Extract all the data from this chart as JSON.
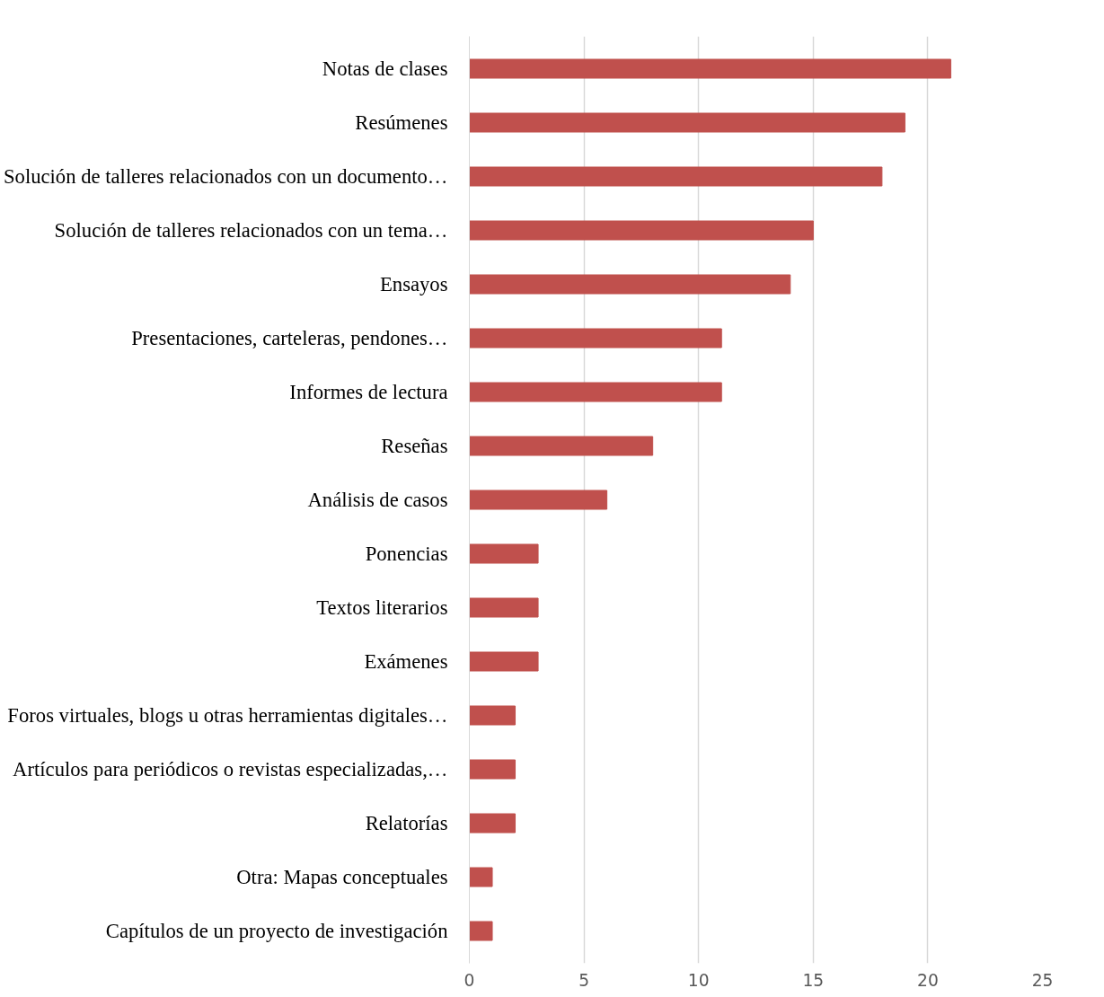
{
  "chart_data": {
    "type": "bar",
    "orientation": "horizontal",
    "categories": [
      "Notas de clases",
      "Resúmenes",
      "Solución de talleres relacionados con un documento…",
      "Solución de talleres relacionados con un tema…",
      "Ensayos",
      "Presentaciones, carteleras, pendones…",
      "Informes de lectura",
      "Reseñas",
      "Análisis de casos",
      "Ponencias",
      "Textos literarios",
      "Exámenes",
      "Foros virtuales, blogs u otras herramientas digitales…",
      "Artículos para periódicos o revistas especializadas,…",
      "Relatorías",
      "Otra: Mapas conceptuales",
      "Capítulos de un proyecto de investigación"
    ],
    "values": [
      21,
      19,
      18,
      15,
      14,
      11,
      11,
      8,
      6,
      3,
      3,
      3,
      2,
      2,
      2,
      1,
      1
    ],
    "color": "#c0504d",
    "xlim": [
      0,
      25
    ],
    "xticks": [
      0,
      5,
      10,
      15,
      20,
      25
    ],
    "grid": "x"
  }
}
